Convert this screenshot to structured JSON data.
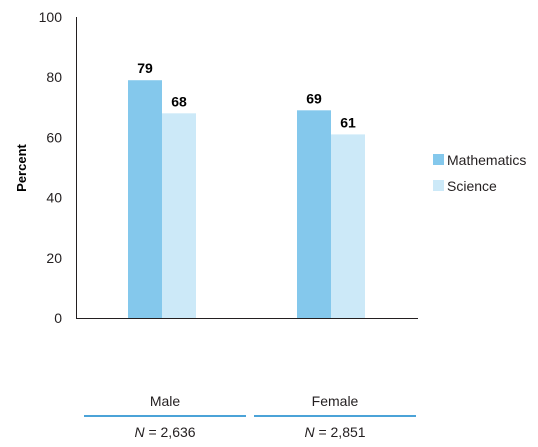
{
  "chart_data": {
    "type": "bar",
    "categories": [
      "Male",
      "Female"
    ],
    "series": [
      {
        "name": "Mathematics",
        "values": [
          79,
          69
        ],
        "color": "#84c8ec"
      },
      {
        "name": "Science",
        "values": [
          68,
          61
        ],
        "color": "#cce9f8"
      }
    ],
    "data_labels": [
      [
        "79",
        "69"
      ],
      [
        "68",
        "61"
      ]
    ],
    "ylabel": "Percent",
    "xlabel": "",
    "ylim": [
      0,
      100
    ],
    "yticks": [
      0,
      20,
      40,
      60,
      80,
      100
    ],
    "grid": false,
    "legend_position": "right"
  },
  "n_table": {
    "columns": [
      {
        "header": "Male",
        "n_symbol": "N",
        "n_value": "= 2,636"
      },
      {
        "header": "Female",
        "n_symbol": "N",
        "n_value": "= 2,851"
      }
    ],
    "rule_color": "#4ba3d8"
  }
}
